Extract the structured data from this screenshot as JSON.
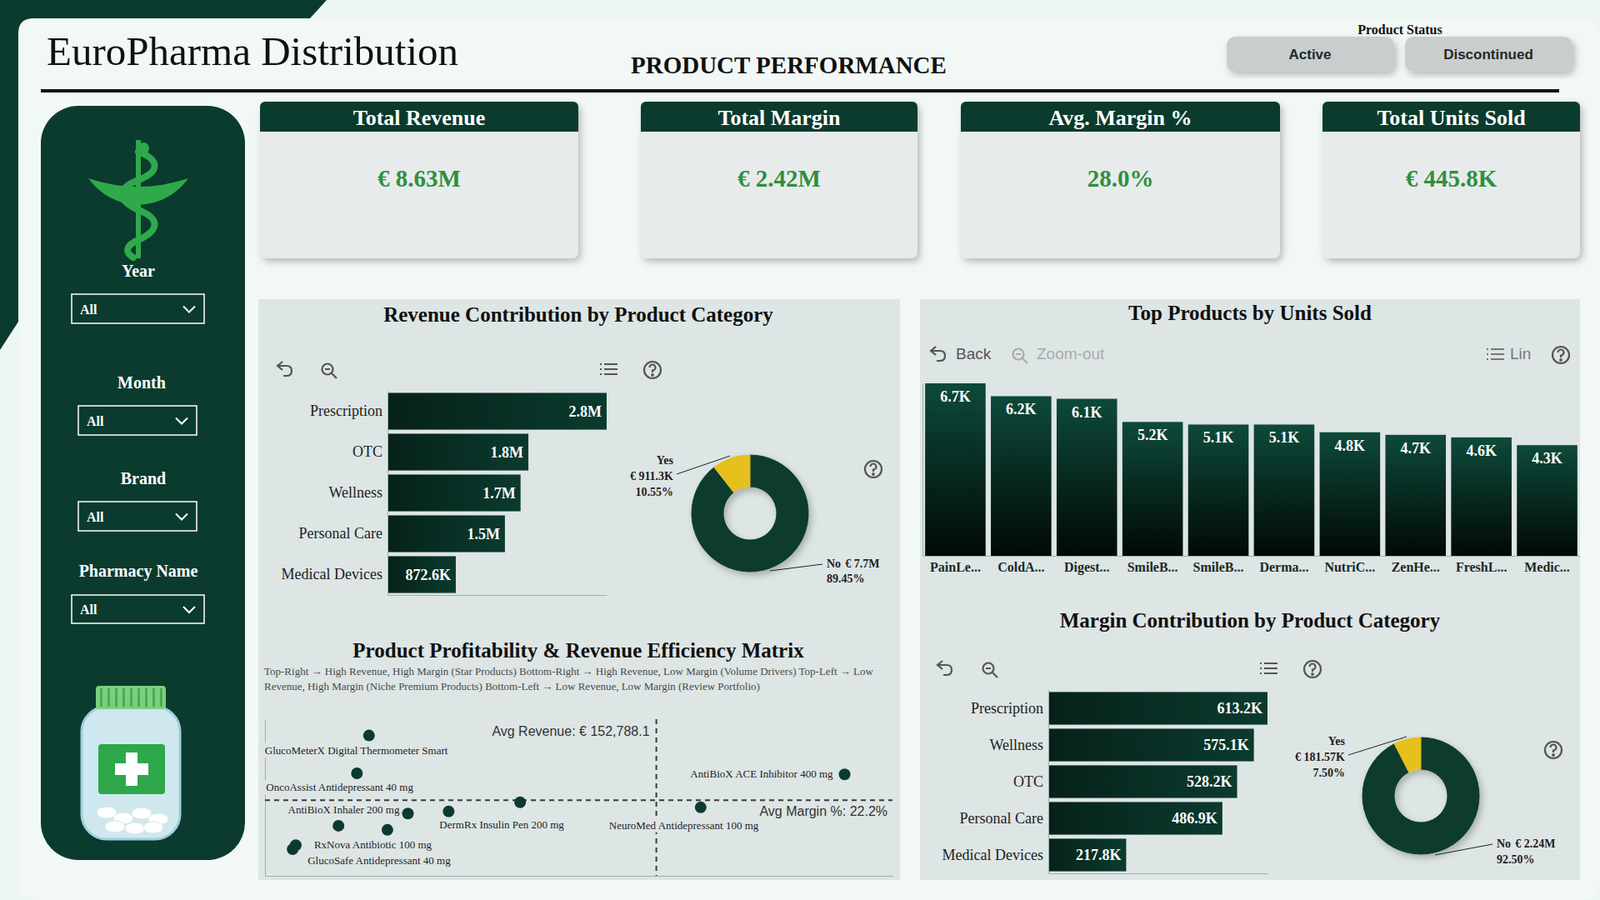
{
  "header": {
    "title": "EuroPharma Distribution",
    "subtitle": "PRODUCT PERFORMANCE"
  },
  "product_status": {
    "label": "Product Status",
    "options": [
      "Active",
      "Discontinued"
    ]
  },
  "filters": [
    {
      "label": "Year",
      "value": "All"
    },
    {
      "label": "Month",
      "value": "All"
    },
    {
      "label": "Brand",
      "value": "All"
    },
    {
      "label": "Pharmacy Name",
      "value": "All"
    }
  ],
  "kpis": [
    {
      "title": "Total Revenue",
      "value": "€ 8.63M"
    },
    {
      "title": "Total Margin",
      "value": "€ 2.42M"
    },
    {
      "title": "Avg. Margin %",
      "value": "28.0%"
    },
    {
      "title": "Total Units Sold",
      "value": "€ 445.8K"
    }
  ],
  "chart_data": [
    {
      "type": "bar",
      "title": "Revenue Contribution by Product Category",
      "orientation": "horizontal",
      "categories": [
        "Prescription",
        "OTC",
        "Wellness",
        "Personal Care",
        "Medical Devices"
      ],
      "values": [
        2800000,
        1800000,
        1700000,
        1500000,
        872600
      ],
      "value_labels": [
        "2.8M",
        "1.8M",
        "1.7M",
        "1.5M",
        "872.6K"
      ],
      "data_labels": true,
      "xlim": [
        0,
        2800000
      ],
      "tick_labels": "y",
      "color": "#0b3b2e"
    },
    {
      "type": "donut",
      "categories": [
        "Yes",
        "No"
      ],
      "values": [
        10.55,
        89.45
      ],
      "value_labels": [
        "10.55%",
        "89.45%"
      ],
      "amount_labels": [
        "€ 911.3K",
        "€ 7.7M"
      ],
      "data_labels": true,
      "colors": [
        "#e6c01c",
        "#0b3b2e"
      ]
    },
    {
      "type": "bar",
      "title": "Top Products by Units Sold",
      "toolbar": [
        "Back",
        "Zoom-out",
        "Lin"
      ],
      "categories": [
        "PainLe...",
        "ColdA...",
        "Digest...",
        "SmileB...",
        "SmileB...",
        "Derma...",
        "NutriC...",
        "ZenHe...",
        "FreshL...",
        "Medic..."
      ],
      "values": [
        6700,
        6200,
        6100,
        5200,
        5100,
        5100,
        4800,
        4700,
        4600,
        4300
      ],
      "value_labels": [
        "6.7K",
        "6.2K",
        "6.1K",
        "5.2K",
        "5.1K",
        "5.1K",
        "4.8K",
        "4.7K",
        "4.6K",
        "4.3K"
      ],
      "data_labels": true,
      "ylim": [
        0,
        6700
      ],
      "tick_labels": "x",
      "color": "#0d4a3a"
    },
    {
      "type": "bar",
      "title": "Margin Contribution by Product Category",
      "orientation": "horizontal",
      "categories": [
        "Prescription",
        "Wellness",
        "OTC",
        "Personal Care",
        "Medical Devices"
      ],
      "values": [
        613200,
        575100,
        528200,
        486900,
        217800
      ],
      "value_labels": [
        "613.2K",
        "575.1K",
        "528.2K",
        "486.9K",
        "217.8K"
      ],
      "data_labels": true,
      "xlim": [
        0,
        613200
      ],
      "tick_labels": "y",
      "color": "#0b3b2e"
    },
    {
      "type": "donut",
      "categories": [
        "Yes",
        "No"
      ],
      "values": [
        7.5,
        92.5
      ],
      "value_labels": [
        "7.50%",
        "92.50%"
      ],
      "amount_labels": [
        "€ 181.57K",
        "€ 2.24M"
      ],
      "data_labels": true,
      "colors": [
        "#e6c01c",
        "#0b3b2e"
      ]
    },
    {
      "type": "scatter",
      "title": "Product Profitability & Revenue Efficiency Matrix",
      "subtitle": "Top-Right → High Revenue, High Margin (Star Products) Bottom-Right → High Revenue, Low Margin (Volume Drivers) Top-Left → Low Revenue, High Margin (Niche Premium Products) Bottom-Left → Low Revenue, Low Margin (Review Portfolio)",
      "x": [
        40600,
        35900,
        226300,
        99600,
        55800,
        71700,
        170100,
        28700,
        47800,
        12000,
        10800
      ],
      "values": [
        41.2,
        30.1,
        29.8,
        21.6,
        18.3,
        18.9,
        20.1,
        14.7,
        13.5,
        9.0,
        7.8
      ],
      "point_labels": [
        "GlucoMeterX Digital Thermometer Smart",
        "OncoAssist Antidepressant 40 mg",
        "AntiBioX ACE Inhibitor 400 mg",
        null,
        "AntiBioX Inhaler 200 mg",
        "DermRx Insulin Pen 200 mg",
        "NeuroMed Antidepressant 100 mg",
        null,
        null,
        "RxNova Antibiotic 100 mg",
        "GlucoSafe Antidepressant 40 mg"
      ],
      "xlim": [
        0,
        245000
      ],
      "ylim": [
        0,
        46
      ],
      "tick_labels": false,
      "color": "#0b3b2e",
      "reference_lines": [
        {
          "axis": "x",
          "value": 152788.1,
          "label": "Avg Revenue: € 152,788.1"
        },
        {
          "axis": "y",
          "value": 22.2,
          "label": "Avg Margin %: 22.2%"
        }
      ]
    }
  ]
}
